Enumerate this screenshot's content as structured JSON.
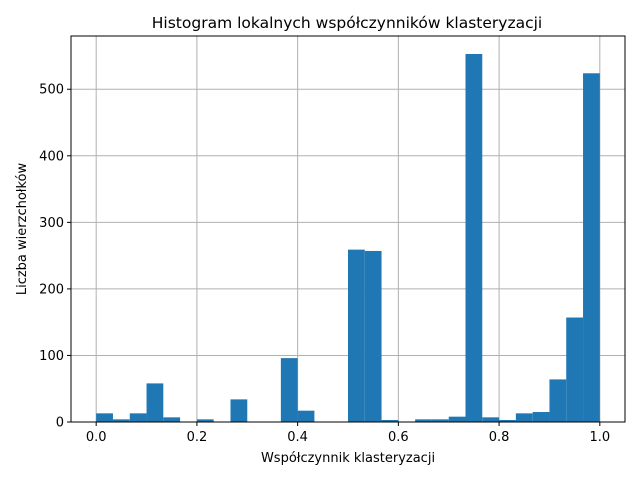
{
  "chart_data": {
    "type": "bar",
    "title": "Histogram lokalnych współczynników klasteryzacji",
    "xlabel": "Współczynnik klasteryzacji",
    "ylabel": "Liczba wierzchołków",
    "xlim": [
      -0.05,
      1.05
    ],
    "ylim": [
      0,
      580
    ],
    "x_ticks": [
      0.0,
      0.2,
      0.4,
      0.6,
      0.8,
      1.0
    ],
    "x_tick_labels": [
      "0.0",
      "0.2",
      "0.4",
      "0.6",
      "0.8",
      "1.0"
    ],
    "y_ticks": [
      0,
      100,
      200,
      300,
      400,
      500
    ],
    "y_tick_labels": [
      "0",
      "100",
      "200",
      "300",
      "400",
      "500"
    ],
    "grid": true,
    "bar_color": "#1f77b4",
    "bin_width": 0.0333,
    "bins": [
      {
        "x0": 0.0,
        "value": 13
      },
      {
        "x0": 0.0333,
        "value": 4
      },
      {
        "x0": 0.0667,
        "value": 13
      },
      {
        "x0": 0.1,
        "value": 58
      },
      {
        "x0": 0.1333,
        "value": 7
      },
      {
        "x0": 0.1667,
        "value": 0
      },
      {
        "x0": 0.2,
        "value": 4
      },
      {
        "x0": 0.2333,
        "value": 0
      },
      {
        "x0": 0.2667,
        "value": 34
      },
      {
        "x0": 0.3,
        "value": 0
      },
      {
        "x0": 0.3333,
        "value": 0
      },
      {
        "x0": 0.3667,
        "value": 96
      },
      {
        "x0": 0.4,
        "value": 17
      },
      {
        "x0": 0.4333,
        "value": 0
      },
      {
        "x0": 0.4667,
        "value": 0
      },
      {
        "x0": 0.5,
        "value": 259
      },
      {
        "x0": 0.5333,
        "value": 257
      },
      {
        "x0": 0.5667,
        "value": 3
      },
      {
        "x0": 0.6,
        "value": 0
      },
      {
        "x0": 0.6333,
        "value": 4
      },
      {
        "x0": 0.6667,
        "value": 4
      },
      {
        "x0": 0.7,
        "value": 8
      },
      {
        "x0": 0.7333,
        "value": 553
      },
      {
        "x0": 0.7667,
        "value": 7
      },
      {
        "x0": 0.8,
        "value": 3
      },
      {
        "x0": 0.8333,
        "value": 13
      },
      {
        "x0": 0.8667,
        "value": 15
      },
      {
        "x0": 0.9,
        "value": 64
      },
      {
        "x0": 0.9333,
        "value": 157
      },
      {
        "x0": 0.9667,
        "value": 524
      }
    ]
  }
}
